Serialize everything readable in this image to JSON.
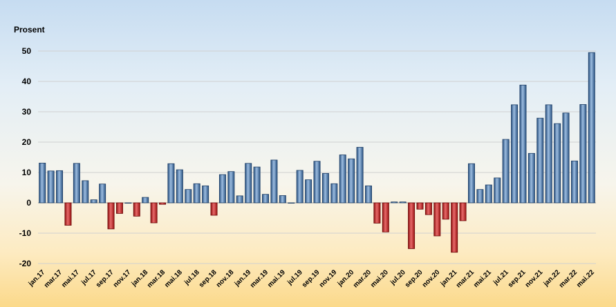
{
  "chart_data": {
    "type": "bar",
    "ylabel": "Prosent",
    "xlabel": "",
    "ylim": [
      -20,
      50
    ],
    "yticks": [
      -20,
      -10,
      0,
      10,
      20,
      30,
      40,
      50
    ],
    "grid": true,
    "legend": "none",
    "colors": {
      "positive": "#3f6b9e",
      "positive_light": "#9dbde0",
      "negative": "#b01818",
      "negative_light": "#e86a6a",
      "gridline": "#d0d0d0"
    },
    "categories": [
      "jan.17",
      "feb.17",
      "mar.17",
      "apr.17",
      "mai.17",
      "jun.17",
      "jul.17",
      "aug.17",
      "sep.17",
      "okt.17",
      "nov.17",
      "des.17",
      "jan.18",
      "feb.18",
      "mar.18",
      "apr.18",
      "mai.18",
      "jun.18",
      "jul.18",
      "aug.18",
      "sep.18",
      "okt.18",
      "nov.18",
      "des.18",
      "jan.19",
      "feb.19",
      "mar.19",
      "apr.19",
      "mai.19",
      "jun.19",
      "jul.19",
      "aug.19",
      "sep.19",
      "okt.19",
      "nov.19",
      "des.19",
      "jan.20",
      "feb.20",
      "mar.20",
      "apr.20",
      "mai.20",
      "jun.20",
      "jul.20",
      "aug.20",
      "sep.20",
      "okt.20",
      "nov.20",
      "des.20",
      "jan.21",
      "feb.21",
      "mar.21",
      "apr.21",
      "mai.21",
      "jun.21",
      "jul.21",
      "aug.21",
      "sep.21",
      "okt.21",
      "nov.21",
      "des.21",
      "jan.22",
      "feb.22",
      "mar.22",
      "apr.22",
      "mai.22"
    ],
    "tick_labels": [
      "jan.17",
      "mar.17",
      "mai.17",
      "jul.17",
      "sep.17",
      "nov.17",
      "jan.18",
      "mar.18",
      "mai.18",
      "jul.18",
      "sep.18",
      "nov.18",
      "jan.19",
      "mar.19",
      "mai.19",
      "jul.19",
      "sep.19",
      "nov.19",
      "jan.20",
      "mar.20",
      "mai.20",
      "jul.20",
      "sep.20",
      "nov.20",
      "jan.21",
      "mar.21",
      "mai.21",
      "jul.21",
      "sep.21",
      "nov.21",
      "jan.22",
      "mar.22",
      "mai.22"
    ],
    "values": [
      13.1,
      10.5,
      10.6,
      -7.4,
      13.0,
      7.3,
      1.0,
      6.2,
      -8.6,
      -3.5,
      0,
      -4.4,
      1.8,
      -6.6,
      -0.5,
      12.9,
      10.9,
      4.4,
      6.3,
      5.6,
      -4.1,
      9.3,
      10.3,
      2.3,
      13.0,
      11.8,
      2.8,
      14.1,
      2.4,
      0,
      10.7,
      7.6,
      13.7,
      9.7,
      6.3,
      15.8,
      14.5,
      18.3,
      5.6,
      -6.7,
      -9.6,
      0.3,
      0.3,
      -15.1,
      -2.1,
      -3.9,
      -10.9,
      -5.4,
      -16.3,
      -5.9,
      12.9,
      4.4,
      5.9,
      8.2,
      20.9,
      32.3,
      38.8,
      16.3,
      27.9,
      32.3,
      26.1,
      29.6,
      13.8,
      32.4,
      49.5
    ]
  }
}
